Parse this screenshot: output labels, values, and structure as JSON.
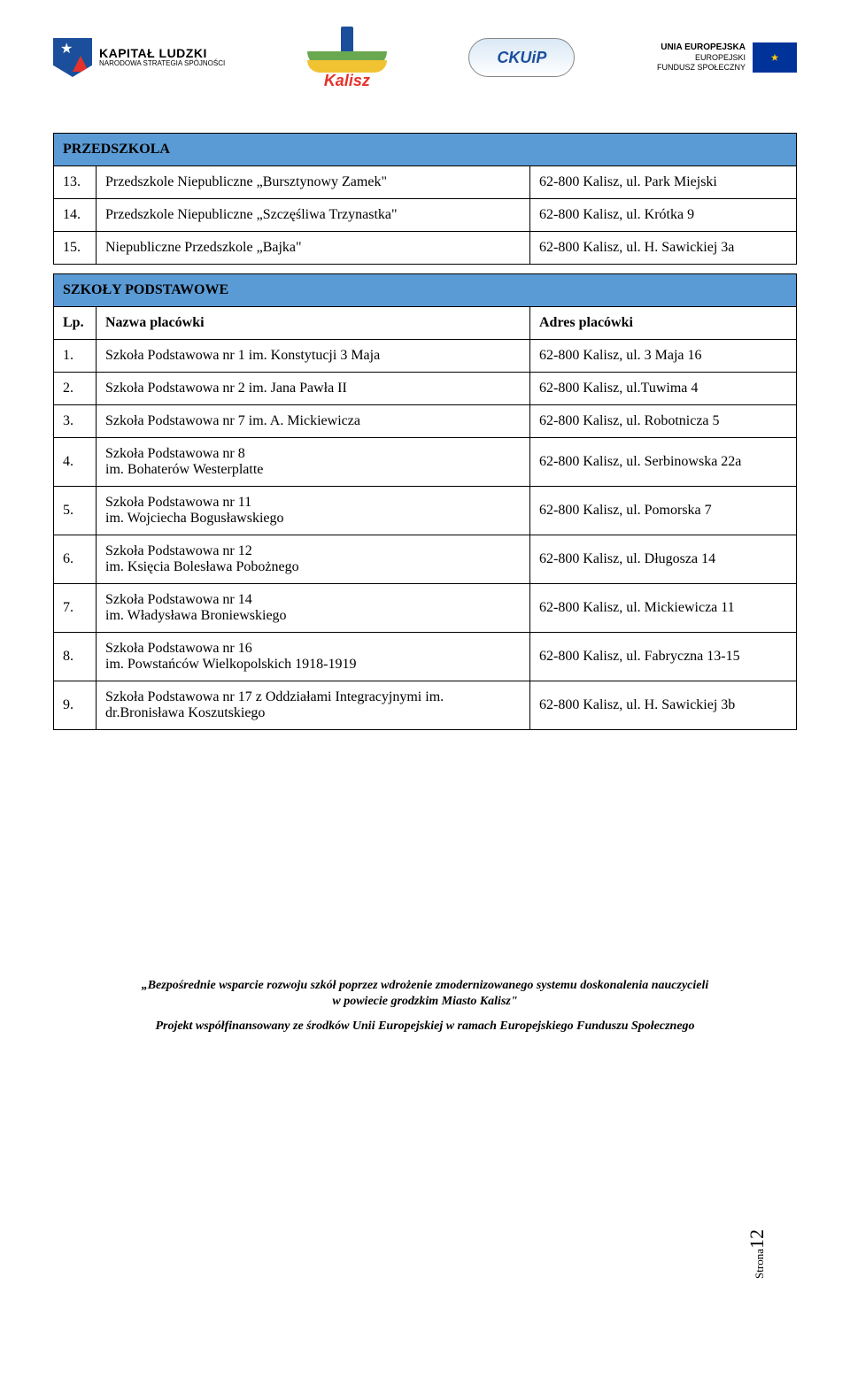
{
  "logos": {
    "kapital_ludzki_main": "KAPITAŁ LUDZKI",
    "kapital_ludzki_sub": "NARODOWA STRATEGIA SPÓJNOŚCI",
    "kalisz": "Kalisz",
    "ckuip": "CKUiP",
    "eu_line1": "UNIA EUROPEJSKA",
    "eu_line2": "EUROPEJSKI",
    "eu_line3": "FUNDUSZ SPOŁECZNY"
  },
  "section_przedszkola": "PRZEDSZKOLA",
  "przedszkola_rows": [
    {
      "lp": "13.",
      "name": "Przedszkole Niepubliczne „Bursztynowy Zamek\"",
      "addr": "62-800 Kalisz, ul. Park Miejski"
    },
    {
      "lp": "14.",
      "name": "Przedszkole Niepubliczne „Szczęśliwa Trzynastka\"",
      "addr": "62-800 Kalisz, ul. Krótka 9"
    },
    {
      "lp": "15.",
      "name": "Niepubliczne Przedszkole „Bajka\"",
      "addr": "62-800 Kalisz, ul. H. Sawickiej 3a"
    }
  ],
  "section_szkoly": "SZKOŁY PODSTAWOWE",
  "col_headers": {
    "lp": "Lp.",
    "name": "Nazwa placówki",
    "addr": "Adres placówki"
  },
  "szkoly_rows": [
    {
      "lp": "1.",
      "name": "Szkoła Podstawowa nr 1 im. Konstytucji 3 Maja",
      "addr": "62-800 Kalisz, ul. 3 Maja 16"
    },
    {
      "lp": "2.",
      "name": "Szkoła Podstawowa nr 2 im. Jana Pawła II",
      "addr": "62-800 Kalisz, ul.Tuwima 4"
    },
    {
      "lp": "3.",
      "name": "Szkoła Podstawowa nr 7 im. A. Mickiewicza",
      "addr": "62-800 Kalisz, ul. Robotnicza 5"
    },
    {
      "lp": "4.",
      "name": "Szkoła Podstawowa nr 8\nim. Bohaterów Westerplatte",
      "addr": "62-800 Kalisz, ul. Serbinowska 22a"
    },
    {
      "lp": "5.",
      "name": "Szkoła Podstawowa nr 11\nim. Wojciecha Bogusławskiego",
      "addr": "62-800 Kalisz, ul. Pomorska 7"
    },
    {
      "lp": "6.",
      "name": "Szkoła Podstawowa nr 12\nim. Księcia Bolesława Pobożnego",
      "addr": "62-800 Kalisz, ul. Długosza 14"
    },
    {
      "lp": "7.",
      "name": "Szkoła Podstawowa nr 14\nim. Władysława Broniewskiego",
      "addr": "62-800 Kalisz, ul. Mickiewicza 11"
    },
    {
      "lp": "8.",
      "name": "Szkoła Podstawowa nr 16\nim. Powstańców Wielkopolskich 1918-1919",
      "addr": "62-800 Kalisz, ul. Fabryczna 13-15"
    },
    {
      "lp": "9.",
      "name": "Szkoła Podstawowa nr 17 z Oddziałami Integracyjnymi im. dr.Bronisława Koszutskiego",
      "addr": "62-800 Kalisz, ul. H. Sawickiej 3b"
    }
  ],
  "footer": {
    "line1a": "„Bezpośrednie wsparcie rozwoju szkół poprzez wdrożenie zmodernizowanego systemu doskonalenia nauczycieli",
    "line1b": "w powiecie grodzkim Miasto Kalisz\"",
    "line2": "Projekt współfinansowany ze środków Unii Europejskiej w ramach Europejskiego Funduszu Społecznego"
  },
  "page": {
    "label": "Strona",
    "num": "12"
  }
}
